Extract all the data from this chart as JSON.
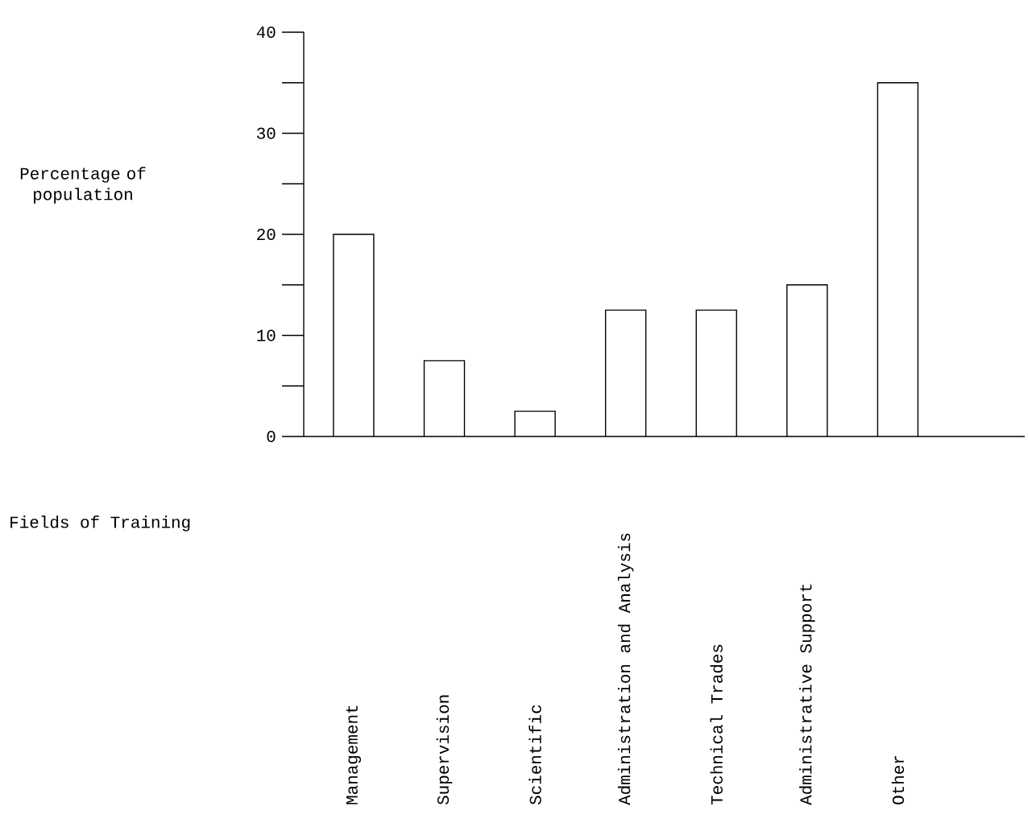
{
  "chart_data": {
    "type": "bar",
    "annotations": [
      "Percentage of population",
      "Fields of Training"
    ],
    "categories": [
      "Management",
      "Supervision",
      "Scientific",
      "Administration and Analysis",
      "Technical Trades",
      "Administrative Support",
      "Other"
    ],
    "values": [
      20,
      7.5,
      2.5,
      12.5,
      12.5,
      15,
      35
    ],
    "color": "#ffffff",
    "ylim": [
      0,
      40
    ],
    "yticks": [
      0,
      10,
      20,
      30,
      40
    ]
  }
}
